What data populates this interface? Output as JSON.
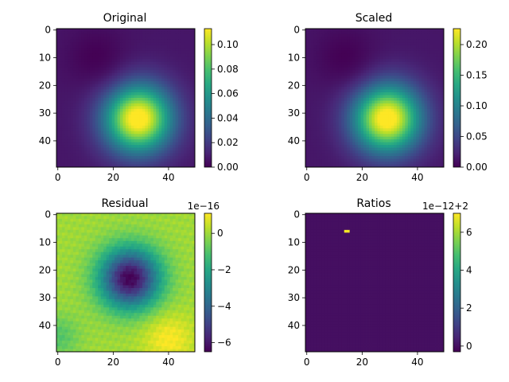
{
  "chart_data": [
    {
      "type": "heatmap",
      "title": "Original",
      "grid_size": [
        50,
        50
      ],
      "xlim": [
        0,
        49
      ],
      "ylim": [
        49,
        0
      ],
      "xticks": [
        "0",
        "20",
        "40"
      ],
      "yticks": [
        "0",
        "10",
        "20",
        "30",
        "40"
      ],
      "colormap": "viridis",
      "field": {
        "kind": "gaussian_blob",
        "center_row": 32,
        "center_col": 29,
        "sigma": 8.5,
        "peak": 0.113,
        "min": 0.0,
        "min_at": [
          10,
          14
        ]
      },
      "colorbar": {
        "vmin": 0.0,
        "vmax": 0.113,
        "ticks": [
          0.0,
          0.02,
          0.04,
          0.06,
          0.08,
          0.1
        ],
        "tick_labels": [
          "0.00",
          "0.02",
          "0.04",
          "0.06",
          "0.08",
          "0.10"
        ],
        "offset_text": ""
      }
    },
    {
      "type": "heatmap",
      "title": "Scaled",
      "grid_size": [
        50,
        50
      ],
      "xlim": [
        0,
        49
      ],
      "ylim": [
        49,
        0
      ],
      "xticks": [
        "0",
        "20",
        "40"
      ],
      "yticks": [
        "0",
        "10",
        "20",
        "30",
        "40"
      ],
      "colormap": "viridis",
      "field": {
        "kind": "gaussian_blob",
        "center_row": 32,
        "center_col": 29,
        "sigma": 8.5,
        "peak": 0.226,
        "min": 0.0,
        "min_at": [
          10,
          14
        ]
      },
      "colorbar": {
        "vmin": 0.0,
        "vmax": 0.226,
        "ticks": [
          0.0,
          0.05,
          0.1,
          0.15,
          0.2
        ],
        "tick_labels": [
          "0.00",
          "0.05",
          "0.10",
          "0.15",
          "0.20"
        ],
        "offset_text": ""
      }
    },
    {
      "type": "heatmap",
      "title": "Residual",
      "grid_size": [
        50,
        50
      ],
      "xlim": [
        0,
        49
      ],
      "ylim": [
        49,
        0
      ],
      "xticks": [
        "0",
        "20",
        "40"
      ],
      "yticks": [
        "0",
        "10",
        "20",
        "30",
        "40"
      ],
      "colormap": "viridis",
      "field": {
        "kind": "negative_ring",
        "center_row": 23,
        "center_col": 26,
        "min": -6.5,
        "max": 1.1,
        "background": 0.0,
        "high_at": [
          45,
          40
        ],
        "low_at": [
          44,
          0
        ]
      },
      "colorbar": {
        "vmin": -6.5,
        "vmax": 1.1,
        "ticks": [
          -6,
          -4,
          -2,
          0
        ],
        "tick_labels": [
          "−6",
          "−4",
          "−2",
          "0"
        ],
        "offset_text": "1e−16"
      }
    },
    {
      "type": "heatmap",
      "title": "Ratios",
      "grid_size": [
        50,
        50
      ],
      "xlim": [
        0,
        49
      ],
      "ylim": [
        49,
        0
      ],
      "xticks": [
        "0",
        "20",
        "40"
      ],
      "yticks": [
        "0",
        "10",
        "20",
        "30",
        "40"
      ],
      "colormap": "viridis",
      "field": {
        "kind": "constant_with_spike",
        "value": 0.0,
        "spike_value": 6.9,
        "spike_cells": [
          [
            6,
            14
          ],
          [
            6,
            15
          ]
        ]
      },
      "colorbar": {
        "vmin": -0.3,
        "vmax": 7.0,
        "ticks": [
          0,
          2,
          4,
          6
        ],
        "tick_labels": [
          "0",
          "2",
          "4",
          "6"
        ],
        "offset_text": "1e−12+2"
      }
    }
  ]
}
